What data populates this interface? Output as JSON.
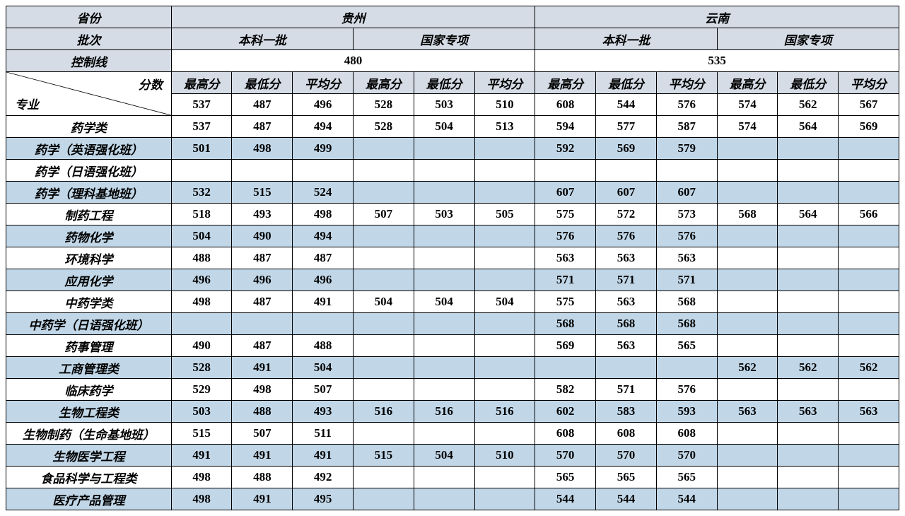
{
  "headers": {
    "province_label": "省份",
    "batch_label": "批次",
    "cutoff_label": "控制线",
    "score_label": "分数",
    "major_label": "专业",
    "provinces": [
      "贵州",
      "云南"
    ],
    "batches": [
      "本科一批",
      "国家专项",
      "本科一批",
      "国家专项"
    ],
    "cutoffs": [
      "480",
      "535"
    ],
    "score_cols": [
      "最高分",
      "最低分",
      "平均分",
      "最高分",
      "最低分",
      "平均分",
      "最高分",
      "最低分",
      "平均分",
      "最高分",
      "最低分",
      "平均分"
    ],
    "summary": [
      "537",
      "487",
      "496",
      "528",
      "503",
      "510",
      "608",
      "544",
      "576",
      "574",
      "562",
      "567"
    ]
  },
  "rows": [
    {
      "label": "药学类",
      "blue": false,
      "cells": [
        "537",
        "487",
        "494",
        "528",
        "504",
        "513",
        "594",
        "577",
        "587",
        "574",
        "564",
        "569"
      ]
    },
    {
      "label": "药学（英语强化班）",
      "blue": true,
      "cells": [
        "501",
        "498",
        "499",
        "",
        "",
        "",
        "592",
        "569",
        "579",
        "",
        "",
        ""
      ]
    },
    {
      "label": "药学（日语强化班）",
      "blue": false,
      "cells": [
        "",
        "",
        "",
        "",
        "",
        "",
        "",
        "",
        "",
        "",
        "",
        ""
      ]
    },
    {
      "label": "药学（理科基地班）",
      "blue": true,
      "cells": [
        "532",
        "515",
        "524",
        "",
        "",
        "",
        "607",
        "607",
        "607",
        "",
        "",
        ""
      ]
    },
    {
      "label": "制药工程",
      "blue": false,
      "cells": [
        "518",
        "493",
        "498",
        "507",
        "503",
        "505",
        "575",
        "572",
        "573",
        "568",
        "564",
        "566"
      ]
    },
    {
      "label": "药物化学",
      "blue": true,
      "cells": [
        "504",
        "490",
        "494",
        "",
        "",
        "",
        "576",
        "576",
        "576",
        "",
        "",
        ""
      ]
    },
    {
      "label": "环境科学",
      "blue": false,
      "cells": [
        "488",
        "487",
        "487",
        "",
        "",
        "",
        "563",
        "563",
        "563",
        "",
        "",
        ""
      ]
    },
    {
      "label": "应用化学",
      "blue": true,
      "cells": [
        "496",
        "496",
        "496",
        "",
        "",
        "",
        "571",
        "571",
        "571",
        "",
        "",
        ""
      ]
    },
    {
      "label": "中药学类",
      "blue": false,
      "cells": [
        "498",
        "487",
        "491",
        "504",
        "504",
        "504",
        "575",
        "563",
        "568",
        "",
        "",
        ""
      ]
    },
    {
      "label": "中药学（日语强化班）",
      "blue": true,
      "cells": [
        "",
        "",
        "",
        "",
        "",
        "",
        "568",
        "568",
        "568",
        "",
        "",
        ""
      ]
    },
    {
      "label": "药事管理",
      "blue": false,
      "cells": [
        "490",
        "487",
        "488",
        "",
        "",
        "",
        "569",
        "563",
        "565",
        "",
        "",
        ""
      ]
    },
    {
      "label": "工商管理类",
      "blue": true,
      "cells": [
        "528",
        "491",
        "504",
        "",
        "",
        "",
        "",
        "",
        "",
        "562",
        "562",
        "562"
      ]
    },
    {
      "label": "临床药学",
      "blue": false,
      "cells": [
        "529",
        "498",
        "507",
        "",
        "",
        "",
        "582",
        "571",
        "576",
        "",
        "",
        ""
      ]
    },
    {
      "label": "生物工程类",
      "blue": true,
      "cells": [
        "503",
        "488",
        "493",
        "516",
        "516",
        "516",
        "602",
        "583",
        "593",
        "563",
        "563",
        "563"
      ]
    },
    {
      "label": "生物制药（生命基地班）",
      "blue": false,
      "cells": [
        "515",
        "507",
        "511",
        "",
        "",
        "",
        "608",
        "608",
        "608",
        "",
        "",
        ""
      ]
    },
    {
      "label": "生物医学工程",
      "blue": true,
      "cells": [
        "491",
        "491",
        "491",
        "515",
        "504",
        "510",
        "570",
        "570",
        "570",
        "",
        "",
        ""
      ]
    },
    {
      "label": "食品科学与工程类",
      "blue": false,
      "cells": [
        "498",
        "488",
        "492",
        "",
        "",
        "",
        "565",
        "565",
        "565",
        "",
        "",
        ""
      ]
    },
    {
      "label": "医疗产品管理",
      "blue": true,
      "cells": [
        "498",
        "491",
        "495",
        "",
        "",
        "",
        "544",
        "544",
        "544",
        "",
        "",
        ""
      ]
    }
  ],
  "style": {
    "header_bg": "#d5dce6",
    "stripe_bg": "#c1d7e8",
    "border_color": "#000000",
    "font_size": 17
  }
}
